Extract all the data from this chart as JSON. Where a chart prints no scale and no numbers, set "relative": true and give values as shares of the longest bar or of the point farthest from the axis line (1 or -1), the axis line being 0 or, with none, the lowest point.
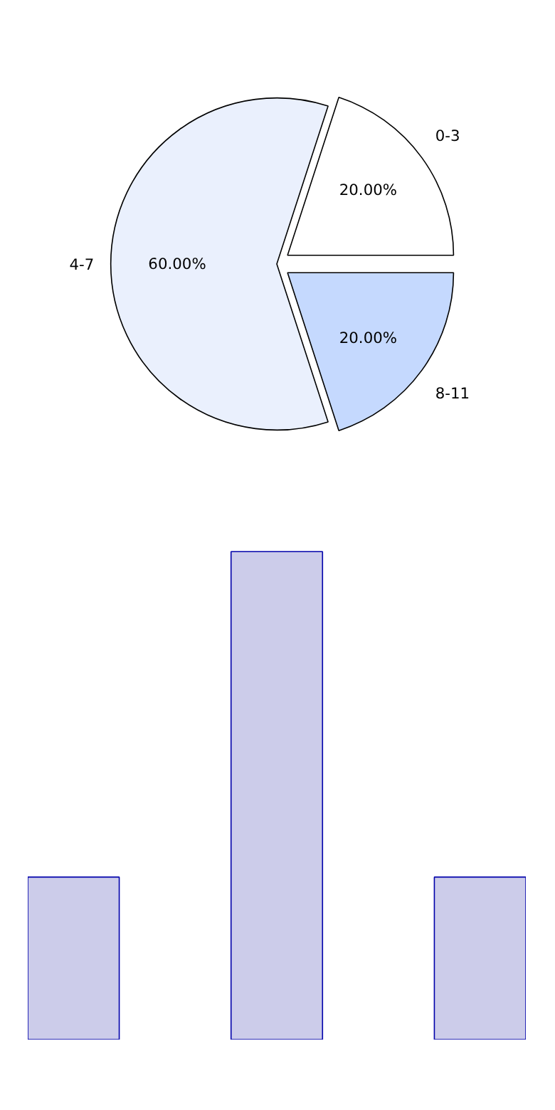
{
  "chart_data": [
    {
      "type": "pie",
      "categories": [
        "0-3",
        "4-7",
        "8-11"
      ],
      "values": [
        20,
        60,
        20
      ],
      "colors": [
        "#ffffff",
        "#eaf0fd",
        "#c5d9fe"
      ],
      "value_labels": [
        "20.00%",
        "60.00%",
        "20.00%"
      ]
    },
    {
      "type": "bar",
      "relative": true,
      "categories": [
        null,
        null,
        null
      ],
      "values": [
        0.333,
        1,
        0.333
      ],
      "color": "#ccccea"
    }
  ]
}
